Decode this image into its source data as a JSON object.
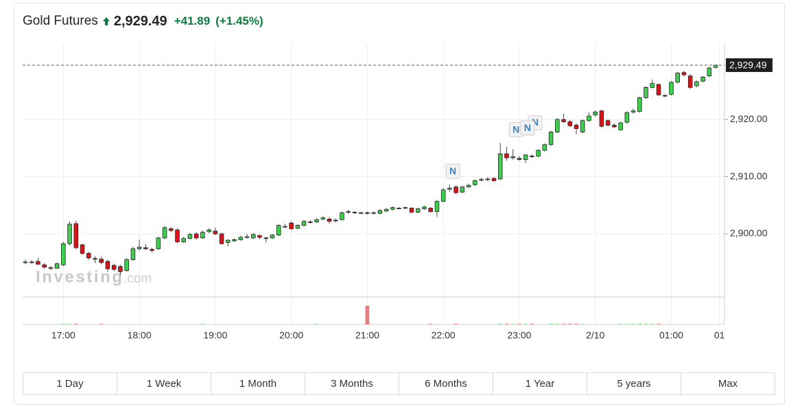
{
  "header": {
    "title": "Gold Futures",
    "price": "2,929.49",
    "change": "+41.89",
    "change_pct": "(+1.45%)"
  },
  "buttons": [
    "1 Day",
    "1 Week",
    "1 Month",
    "3 Months",
    "6 Months",
    "1 Year",
    "5 years",
    "Max"
  ],
  "chart_data": {
    "type": "candlestick",
    "xlim": [
      -0.43,
      110.4
    ],
    "ylim": [
      2889.1,
      2933.2
    ],
    "yticks": [
      {
        "value": 2900,
        "label": "2,900.00"
      },
      {
        "value": 2910,
        "label": "2,910.00"
      },
      {
        "value": 2920,
        "label": "2,920.00"
      }
    ],
    "xticks": [
      {
        "value": 6,
        "label": "17:00"
      },
      {
        "value": 18,
        "label": "18:00"
      },
      {
        "value": 30,
        "label": "19:00"
      },
      {
        "value": 42,
        "label": "20:00"
      },
      {
        "value": 54,
        "label": "21:00"
      },
      {
        "value": 66,
        "label": "22:00"
      },
      {
        "value": 78,
        "label": "23:00"
      },
      {
        "value": 90,
        "label": "2/10"
      },
      {
        "value": 102,
        "label": "01:00"
      },
      {
        "value": 109.6,
        "label": "01"
      }
    ],
    "grid": true,
    "up_color": "#3fcf4f",
    "down_color": "#d9151b",
    "last_price": {
      "value": 2929.49,
      "label": "2,929.49"
    },
    "watermark": [
      "Investing",
      ".com"
    ],
    "news": [
      {
        "label": "N",
        "x": 67.5
      },
      {
        "label": "N",
        "x": 80.5
      },
      {
        "label": "N",
        "x": 77.5
      },
      {
        "label": "N",
        "x": 79.3
      }
    ],
    "ohlc": [
      [
        2895.0,
        2895.5,
        2894.7,
        2895.1
      ],
      [
        2895.1,
        2895.4,
        2894.8,
        2895.0
      ],
      [
        2895.2,
        2895.8,
        2894.6,
        2894.7
      ],
      [
        2894.6,
        2894.9,
        2893.9,
        2894.2
      ],
      [
        2894.1,
        2894.4,
        2893.7,
        2894.0
      ],
      [
        2894.0,
        2895.0,
        2893.9,
        2894.8
      ],
      [
        2894.6,
        2898.6,
        2894.4,
        2898.3
      ],
      [
        2898.3,
        2902.2,
        2898.0,
        2901.7
      ],
      [
        2901.8,
        2902.3,
        2897.3,
        2897.6
      ],
      [
        2898.1,
        2898.3,
        2896.3,
        2896.6
      ],
      [
        2896.6,
        2896.9,
        2895.5,
        2895.8
      ],
      [
        2895.7,
        2896.1,
        2894.9,
        2895.6
      ],
      [
        2895.6,
        2896.0,
        2894.7,
        2895.0
      ],
      [
        2895.2,
        2895.5,
        2893.4,
        2893.9
      ],
      [
        2894.5,
        2894.8,
        2893.5,
        2893.8
      ],
      [
        2894.3,
        2894.6,
        2892.8,
        2893.4
      ],
      [
        2893.6,
        2895.8,
        2893.4,
        2895.5
      ],
      [
        2895.5,
        2897.8,
        2895.3,
        2897.4
      ],
      [
        2897.4,
        2899.0,
        2897.1,
        2897.7
      ],
      [
        2897.6,
        2898.2,
        2897.2,
        2897.4
      ],
      [
        2897.3,
        2897.6,
        2896.7,
        2897.1
      ],
      [
        2897.4,
        2899.5,
        2897.2,
        2899.3
      ],
      [
        2899.3,
        2901.4,
        2899.1,
        2901.1
      ],
      [
        2900.9,
        2901.2,
        2900.3,
        2900.6
      ],
      [
        2900.7,
        2901.0,
        2898.4,
        2898.6
      ],
      [
        2898.6,
        2899.5,
        2898.4,
        2899.2
      ],
      [
        2899.2,
        2900.2,
        2899.0,
        2899.9
      ],
      [
        2900.0,
        2900.3,
        2899.0,
        2899.3
      ],
      [
        2899.3,
        2900.6,
        2899.1,
        2900.3
      ],
      [
        2900.4,
        2901.0,
        2900.1,
        2900.7
      ],
      [
        2900.5,
        2901.1,
        2899.8,
        2900.0
      ],
      [
        2900.0,
        2900.2,
        2898.1,
        2898.3
      ],
      [
        2898.5,
        2899.1,
        2897.8,
        2898.9
      ],
      [
        2898.8,
        2899.2,
        2898.6,
        2899.0
      ],
      [
        2899.0,
        2899.7,
        2898.8,
        2899.4
      ],
      [
        2899.4,
        2900.0,
        2899.2,
        2899.5
      ],
      [
        2899.3,
        2900.1,
        2899.1,
        2899.9
      ],
      [
        2899.7,
        2899.9,
        2899.1,
        2899.4
      ],
      [
        2899.3,
        2899.5,
        2898.5,
        2899.2
      ],
      [
        2899.3,
        2900.0,
        2899.1,
        2899.8
      ],
      [
        2899.8,
        2901.7,
        2899.6,
        2901.5
      ],
      [
        2901.3,
        2901.8,
        2901.0,
        2901.2
      ],
      [
        2901.9,
        2902.2,
        2900.7,
        2900.9
      ],
      [
        2901.0,
        2901.7,
        2900.8,
        2901.5
      ],
      [
        2901.5,
        2902.4,
        2901.3,
        2902.2
      ],
      [
        2902.1,
        2902.4,
        2901.8,
        2902.0
      ],
      [
        2902.1,
        2902.7,
        2901.9,
        2902.5
      ],
      [
        2902.6,
        2903.1,
        2902.4,
        2902.8
      ],
      [
        2902.6,
        2902.9,
        2901.8,
        2902.2
      ],
      [
        2902.3,
        2902.7,
        2902.0,
        2902.4
      ],
      [
        2902.5,
        2903.9,
        2902.3,
        2903.7
      ],
      [
        2903.8,
        2904.2,
        2903.5,
        2903.9
      ],
      [
        2903.8,
        2904.0,
        2903.5,
        2903.7
      ],
      [
        2903.7,
        2903.9,
        2903.5,
        2903.7
      ],
      [
        2903.7,
        2903.9,
        2903.4,
        2903.6
      ],
      [
        2903.6,
        2903.9,
        2903.4,
        2903.7
      ],
      [
        2903.6,
        2904.3,
        2903.4,
        2904.1
      ],
      [
        2904.0,
        2904.5,
        2903.8,
        2904.3
      ],
      [
        2904.3,
        2904.8,
        2904.1,
        2904.6
      ],
      [
        2904.5,
        2904.7,
        2904.3,
        2904.5
      ],
      [
        2904.5,
        2904.8,
        2904.3,
        2904.6
      ],
      [
        2904.5,
        2904.7,
        2903.6,
        2903.8
      ],
      [
        2903.8,
        2904.6,
        2903.6,
        2904.4
      ],
      [
        2904.4,
        2904.9,
        2904.2,
        2904.7
      ],
      [
        2904.5,
        2904.7,
        2903.7,
        2903.9
      ],
      [
        2903.9,
        2905.9,
        2903.0,
        2905.7
      ],
      [
        2905.7,
        2908.0,
        2905.5,
        2907.7
      ],
      [
        2907.8,
        2908.6,
        2907.3,
        2908.0
      ],
      [
        2908.2,
        2908.5,
        2906.9,
        2907.2
      ],
      [
        2907.3,
        2908.4,
        2907.1,
        2908.2
      ],
      [
        2908.2,
        2908.8,
        2908.0,
        2908.5
      ],
      [
        2908.6,
        2909.5,
        2908.4,
        2909.3
      ],
      [
        2909.4,
        2909.8,
        2909.2,
        2909.5
      ],
      [
        2909.5,
        2909.9,
        2909.2,
        2909.6
      ],
      [
        2909.7,
        2909.9,
        2909.1,
        2909.3
      ],
      [
        2909.6,
        2915.9,
        2909.4,
        2914.0
      ],
      [
        2914.0,
        2915.2,
        2912.8,
        2913.3
      ],
      [
        2913.3,
        2914.8,
        2913.0,
        2913.5
      ],
      [
        2913.2,
        2913.6,
        2912.8,
        2913.0
      ],
      [
        2913.0,
        2913.9,
        2912.4,
        2913.8
      ],
      [
        2913.6,
        2913.9,
        2913.3,
        2913.5
      ],
      [
        2913.6,
        2914.8,
        2913.4,
        2914.6
      ],
      [
        2914.6,
        2915.8,
        2914.4,
        2915.6
      ],
      [
        2915.6,
        2918.0,
        2915.4,
        2917.8
      ],
      [
        2917.8,
        2920.2,
        2917.6,
        2920.0
      ],
      [
        2920.0,
        2921.0,
        2919.4,
        2919.6
      ],
      [
        2919.6,
        2919.9,
        2918.7,
        2918.9
      ],
      [
        2919.0,
        2919.3,
        2917.4,
        2918.4
      ],
      [
        2917.8,
        2920.0,
        2917.6,
        2919.8
      ],
      [
        2919.8,
        2921.2,
        2919.6,
        2920.6
      ],
      [
        2920.8,
        2921.6,
        2920.5,
        2921.3
      ],
      [
        2921.5,
        2921.7,
        2918.6,
        2918.8
      ],
      [
        2919.8,
        2920.0,
        2918.8,
        2919.0
      ],
      [
        2919.0,
        2919.3,
        2918.5,
        2918.7
      ],
      [
        2918.2,
        2919.6,
        2918.0,
        2919.4
      ],
      [
        2919.5,
        2921.4,
        2919.3,
        2921.2
      ],
      [
        2921.3,
        2921.9,
        2921.0,
        2921.5
      ],
      [
        2921.4,
        2924.0,
        2921.2,
        2923.8
      ],
      [
        2923.8,
        2925.8,
        2923.6,
        2925.6
      ],
      [
        2925.6,
        2927.0,
        2925.4,
        2926.3
      ],
      [
        2926.1,
        2926.3,
        2924.1,
        2924.3
      ],
      [
        2924.1,
        2924.4,
        2923.9,
        2924.2
      ],
      [
        2924.4,
        2926.7,
        2924.2,
        2926.5
      ],
      [
        2926.5,
        2928.3,
        2926.3,
        2928.1
      ],
      [
        2928.2,
        2928.5,
        2927.5,
        2927.8
      ],
      [
        2927.6,
        2927.9,
        2925.3,
        2925.6
      ],
      [
        2925.9,
        2926.8,
        2925.6,
        2926.6
      ],
      [
        2926.7,
        2927.6,
        2926.5,
        2927.4
      ],
      [
        2927.6,
        2929.2,
        2927.4,
        2929.0
      ],
      [
        2929.1,
        2929.6,
        2928.9,
        2929.49
      ]
    ],
    "volume_lim": [
      0,
      100
    ],
    "volume": [
      0,
      0,
      0,
      0,
      0,
      0,
      2,
      2,
      2,
      0,
      0,
      0,
      2,
      0,
      0,
      0,
      0,
      0,
      0,
      0,
      0,
      0,
      0,
      0,
      0,
      0,
      0,
      0,
      2,
      0,
      0,
      0,
      0,
      0,
      0,
      0,
      0,
      0,
      0,
      0,
      0,
      0,
      0,
      0,
      0,
      0,
      2,
      0,
      0,
      0,
      0,
      0,
      0,
      0,
      68,
      0,
      0,
      0,
      0,
      0,
      0,
      0,
      0,
      0,
      2,
      0,
      0,
      0,
      2,
      0,
      0,
      0,
      0,
      0,
      0,
      3,
      2,
      2,
      2,
      2,
      2,
      0,
      0,
      3,
      2,
      2,
      2,
      2,
      2,
      0,
      0,
      0,
      0,
      0,
      2,
      2,
      2,
      3,
      3,
      2,
      2,
      0,
      0,
      0,
      0,
      0,
      0,
      0,
      0,
      0
    ]
  }
}
